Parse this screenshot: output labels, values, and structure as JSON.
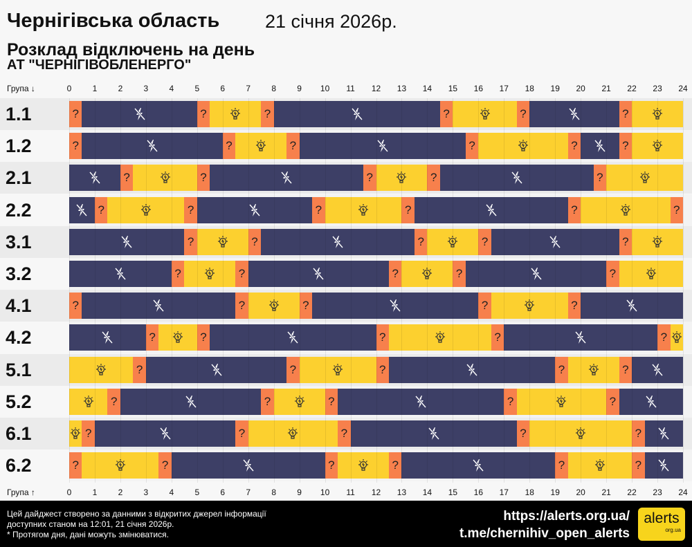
{
  "header": {
    "title": "Чернігівська область",
    "date": "21 січня 2026р.",
    "subtitle": "Розклад відключень на день",
    "company": "АТ \"ЧЕРНІГІВОБЛЕНЕРГО\""
  },
  "axis": {
    "top_label": "Група ↓",
    "bottom_label": "Група ↑",
    "ticks": [
      "0",
      "1",
      "2",
      "3",
      "4",
      "5",
      "6",
      "7",
      "8",
      "9",
      "10",
      "11",
      "12",
      "13",
      "14",
      "15",
      "16",
      "17",
      "18",
      "19",
      "20",
      "21",
      "22",
      "23",
      "24"
    ]
  },
  "legend_colors": {
    "off": "#3d3f66",
    "on": "#fcd02f",
    "maybe": "#f7804c"
  },
  "icons": {
    "off": "lightning-off-icon",
    "on": "lightbulb-icon",
    "maybe": "question-icon"
  },
  "groups": [
    {
      "name": "1.1",
      "segments": [
        [
          0,
          0.5,
          "maybe"
        ],
        [
          0.5,
          5,
          "off"
        ],
        [
          5,
          5.5,
          "maybe"
        ],
        [
          5.5,
          7.5,
          "on"
        ],
        [
          7.5,
          8,
          "maybe"
        ],
        [
          8,
          14.5,
          "off"
        ],
        [
          14.5,
          15,
          "maybe"
        ],
        [
          15,
          17.5,
          "on"
        ],
        [
          17.5,
          18,
          "maybe"
        ],
        [
          18,
          21.5,
          "off"
        ],
        [
          21.5,
          22,
          "maybe"
        ],
        [
          22,
          24,
          "on"
        ]
      ]
    },
    {
      "name": "1.2",
      "segments": [
        [
          0,
          0.5,
          "maybe"
        ],
        [
          0.5,
          6,
          "off"
        ],
        [
          6,
          6.5,
          "maybe"
        ],
        [
          6.5,
          8.5,
          "on"
        ],
        [
          8.5,
          9,
          "maybe"
        ],
        [
          9,
          15.5,
          "off"
        ],
        [
          15.5,
          16,
          "maybe"
        ],
        [
          16,
          19.5,
          "on"
        ],
        [
          19.5,
          20,
          "maybe"
        ],
        [
          20,
          21.5,
          "off"
        ],
        [
          21.5,
          22,
          "maybe"
        ],
        [
          22,
          24,
          "on"
        ]
      ]
    },
    {
      "name": "2.1",
      "segments": [
        [
          0,
          2,
          "off"
        ],
        [
          2,
          2.5,
          "maybe"
        ],
        [
          2.5,
          5,
          "on"
        ],
        [
          5,
          5.5,
          "maybe"
        ],
        [
          5.5,
          11.5,
          "off"
        ],
        [
          11.5,
          12,
          "maybe"
        ],
        [
          12,
          14,
          "on"
        ],
        [
          14,
          14.5,
          "maybe"
        ],
        [
          14.5,
          20.5,
          "off"
        ],
        [
          20.5,
          21,
          "maybe"
        ],
        [
          21,
          24,
          "on"
        ]
      ]
    },
    {
      "name": "2.2",
      "segments": [
        [
          0,
          1,
          "off"
        ],
        [
          1,
          1.5,
          "maybe"
        ],
        [
          1.5,
          4.5,
          "on"
        ],
        [
          4.5,
          5,
          "maybe"
        ],
        [
          5,
          9.5,
          "off"
        ],
        [
          9.5,
          10,
          "maybe"
        ],
        [
          10,
          13,
          "on"
        ],
        [
          13,
          13.5,
          "maybe"
        ],
        [
          13.5,
          19.5,
          "off"
        ],
        [
          19.5,
          20,
          "maybe"
        ],
        [
          20,
          23.5,
          "on"
        ],
        [
          23.5,
          24,
          "maybe"
        ]
      ]
    },
    {
      "name": "3.1",
      "segments": [
        [
          0,
          4.5,
          "off"
        ],
        [
          4.5,
          5,
          "maybe"
        ],
        [
          5,
          7,
          "on"
        ],
        [
          7,
          7.5,
          "maybe"
        ],
        [
          7.5,
          13.5,
          "off"
        ],
        [
          13.5,
          14,
          "maybe"
        ],
        [
          14,
          16,
          "on"
        ],
        [
          16,
          16.5,
          "maybe"
        ],
        [
          16.5,
          21.5,
          "off"
        ],
        [
          21.5,
          22,
          "maybe"
        ],
        [
          22,
          24,
          "on"
        ]
      ]
    },
    {
      "name": "3.2",
      "segments": [
        [
          0,
          4,
          "off"
        ],
        [
          4,
          4.5,
          "maybe"
        ],
        [
          4.5,
          6.5,
          "on"
        ],
        [
          6.5,
          7,
          "maybe"
        ],
        [
          7,
          12.5,
          "off"
        ],
        [
          12.5,
          13,
          "maybe"
        ],
        [
          13,
          15,
          "on"
        ],
        [
          15,
          15.5,
          "maybe"
        ],
        [
          15.5,
          21,
          "off"
        ],
        [
          21,
          21.5,
          "maybe"
        ],
        [
          21.5,
          24,
          "on"
        ]
      ]
    },
    {
      "name": "4.1",
      "segments": [
        [
          0,
          0.5,
          "maybe"
        ],
        [
          0.5,
          6.5,
          "off"
        ],
        [
          6.5,
          7,
          "maybe"
        ],
        [
          7,
          9,
          "on"
        ],
        [
          9,
          9.5,
          "maybe"
        ],
        [
          9.5,
          16,
          "off"
        ],
        [
          16,
          16.5,
          "maybe"
        ],
        [
          16.5,
          19.5,
          "on"
        ],
        [
          19.5,
          20,
          "maybe"
        ],
        [
          20,
          24,
          "off"
        ]
      ]
    },
    {
      "name": "4.2",
      "segments": [
        [
          0,
          3,
          "off"
        ],
        [
          3,
          3.5,
          "maybe"
        ],
        [
          3.5,
          5,
          "on"
        ],
        [
          5,
          5.5,
          "maybe"
        ],
        [
          5.5,
          12,
          "off"
        ],
        [
          12,
          12.5,
          "maybe"
        ],
        [
          12.5,
          16.5,
          "on"
        ],
        [
          16.5,
          17,
          "maybe"
        ],
        [
          17,
          23,
          "off"
        ],
        [
          23,
          23.5,
          "maybe"
        ],
        [
          23.5,
          24,
          "on"
        ]
      ]
    },
    {
      "name": "5.1",
      "segments": [
        [
          0,
          2.5,
          "on"
        ],
        [
          2.5,
          3,
          "maybe"
        ],
        [
          3,
          8.5,
          "off"
        ],
        [
          8.5,
          9,
          "maybe"
        ],
        [
          9,
          12,
          "on"
        ],
        [
          12,
          12.5,
          "maybe"
        ],
        [
          12.5,
          19,
          "off"
        ],
        [
          19,
          19.5,
          "maybe"
        ],
        [
          19.5,
          21.5,
          "on"
        ],
        [
          21.5,
          22,
          "maybe"
        ],
        [
          22,
          24,
          "off"
        ]
      ]
    },
    {
      "name": "5.2",
      "segments": [
        [
          0,
          1.5,
          "on"
        ],
        [
          1.5,
          2,
          "maybe"
        ],
        [
          2,
          7.5,
          "off"
        ],
        [
          7.5,
          8,
          "maybe"
        ],
        [
          8,
          10,
          "on"
        ],
        [
          10,
          10.5,
          "maybe"
        ],
        [
          10.5,
          17,
          "off"
        ],
        [
          17,
          17.5,
          "maybe"
        ],
        [
          17.5,
          21,
          "on"
        ],
        [
          21,
          21.5,
          "maybe"
        ],
        [
          21.5,
          24,
          "off"
        ]
      ]
    },
    {
      "name": "6.1",
      "segments": [
        [
          0,
          0.5,
          "on"
        ],
        [
          0.5,
          1,
          "maybe"
        ],
        [
          1,
          6.5,
          "off"
        ],
        [
          6.5,
          7,
          "maybe"
        ],
        [
          7,
          10.5,
          "on"
        ],
        [
          10.5,
          11,
          "maybe"
        ],
        [
          11,
          17.5,
          "off"
        ],
        [
          17.5,
          18,
          "maybe"
        ],
        [
          18,
          22,
          "on"
        ],
        [
          22,
          22.5,
          "maybe"
        ],
        [
          22.5,
          24,
          "off"
        ]
      ]
    },
    {
      "name": "6.2",
      "segments": [
        [
          0,
          0.5,
          "maybe"
        ],
        [
          0.5,
          3.5,
          "on"
        ],
        [
          3.5,
          4,
          "maybe"
        ],
        [
          4,
          10,
          "off"
        ],
        [
          10,
          10.5,
          "maybe"
        ],
        [
          10.5,
          12.5,
          "on"
        ],
        [
          12.5,
          13,
          "maybe"
        ],
        [
          13,
          19,
          "off"
        ],
        [
          19,
          19.5,
          "maybe"
        ],
        [
          19.5,
          22,
          "on"
        ],
        [
          22,
          22.5,
          "maybe"
        ],
        [
          22.5,
          24,
          "off"
        ]
      ]
    }
  ],
  "footer": {
    "note_line1": "Цей дайджест створено за данними з відкритих джерел інформації",
    "note_line2": "доступних станом на 12:01, 21 січня 2026р.",
    "note_line3": "* Протягом дня, дані можуть змінюватися.",
    "link1": "https://alerts.org.ua/",
    "link2": "t.me/chernihiv_open_alerts",
    "logo_text": "alerts",
    "logo_sub": "org.ua"
  }
}
